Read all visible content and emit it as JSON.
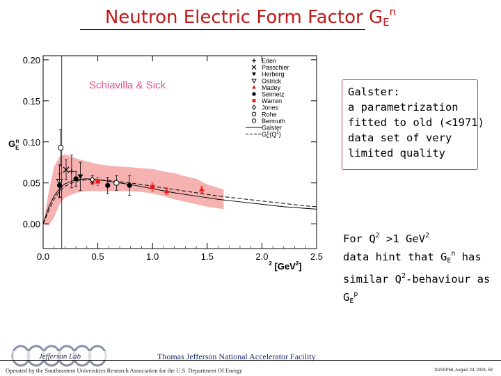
{
  "slide": {
    "title_main": "Neutron Electric Form Factor G",
    "title_sub": "E",
    "title_sup": "n",
    "note_box": [
      "Galster:",
      "a parametrization",
      "fitted to old (<1971)",
      "data set of very",
      "limited quality"
    ],
    "note2": {
      "l1_a": "For Q",
      "l1_s1": "2",
      "l1_b": " >1 GeV",
      "l1_s2": "2",
      "l2_a": "data hint that G",
      "l2_sub": "E",
      "l2_sup": "n",
      "l2_b": " has",
      "l3_a": "similar Q",
      "l3_sup": "2",
      "l3_b": "-behaviour as",
      "l4_a": "G",
      "l4_sub": "E",
      "l4_sup": "p"
    },
    "lab_name": "Thomas Jefferson National Accelerator Facility",
    "operated_by": "Operated by the Southeastern Universities Research Association for the U.S. Department Of Energy",
    "slide_id": "SUSSP58, August 23, 2004, 59",
    "logo_text": "Jefferson Lab"
  },
  "chart_data": {
    "type": "scatter",
    "annotation": "Schiavilla & Sick",
    "ylabel_main": "G",
    "ylabel_sub": "E",
    "ylabel_sup": "n",
    "xlabel_main": "Q",
    "xlabel_sup": "2",
    "xlabel_unit_a": "[GeV",
    "xlabel_unit_sup": "2",
    "xlabel_unit_b": "]",
    "xlim": [
      0.0,
      2.5
    ],
    "ylim": [
      -0.03,
      0.205
    ],
    "xticks": [
      0.0,
      0.5,
      1.0,
      1.5,
      2.0,
      2.5
    ],
    "xtick_labels": [
      "0.0",
      "0.5",
      "1.0",
      "1.5",
      "2.0",
      "2.5"
    ],
    "yticks": [
      0.0,
      0.05,
      0.1,
      0.15,
      0.2
    ],
    "ytick_labels": [
      "0.00",
      "0.05",
      "0.10",
      "0.15",
      "0.20"
    ],
    "vline_x": 0.17,
    "colors": {
      "band": "#f4a3a3",
      "red": "#e0201e",
      "annotation": "#e0508a",
      "frame": "#000000"
    },
    "band": {
      "x": [
        0.0,
        0.05,
        0.1,
        0.15,
        0.2,
        0.3,
        0.4,
        0.5,
        0.6,
        0.7,
        0.8,
        0.9,
        1.0,
        1.1,
        1.2,
        1.3,
        1.4,
        1.5,
        1.65
      ],
      "upper": [
        0.0,
        0.038,
        0.07,
        0.082,
        0.085,
        0.08,
        0.076,
        0.073,
        0.071,
        0.07,
        0.069,
        0.068,
        0.067,
        0.064,
        0.062,
        0.058,
        0.055,
        0.048,
        0.042
      ],
      "lower": [
        0.0,
        -0.002,
        0.008,
        0.024,
        0.032,
        0.038,
        0.04,
        0.04,
        0.04,
        0.04,
        0.04,
        0.039,
        0.037,
        0.034,
        0.03,
        0.027,
        0.024,
        0.021,
        0.018
      ]
    },
    "series": [
      {
        "name": "Eden",
        "marker": "plus",
        "color": "#000000",
        "points": [
          [
            0.26,
            0.064,
            0.02
          ]
        ]
      },
      {
        "name": "Passchier",
        "marker": "x",
        "color": "#000000",
        "points": [
          [
            0.21,
            0.066,
            0.012
          ]
        ]
      },
      {
        "name": "Herberg",
        "marker": "tri_down",
        "color": "#000000",
        "points": [
          [
            0.34,
            0.058,
            0.017
          ]
        ]
      },
      {
        "name": "Ostrick",
        "marker": "tri_down_open",
        "color": "#000000",
        "points": [
          [
            0.15,
            0.052,
            0.02
          ]
        ]
      },
      {
        "name": "Madey",
        "marker": "tri_up",
        "color": "#e0201e",
        "points": [
          [
            0.45,
            0.052,
            0.004
          ],
          [
            1.13,
            0.04,
            0.004
          ],
          [
            1.45,
            0.042,
            0.004
          ]
        ]
      },
      {
        "name": "Seimetz",
        "marker": "circle",
        "color": "#000000",
        "points": [
          [
            0.15,
            0.047,
            0.014
          ],
          [
            0.3,
            0.055,
            0.009
          ],
          [
            0.59,
            0.047,
            0.01
          ],
          [
            0.79,
            0.047,
            0.012
          ]
        ]
      },
      {
        "name": "Warren",
        "marker": "square",
        "color": "#e0201e",
        "points": [
          [
            0.5,
            0.052,
            0.005
          ],
          [
            1.0,
            0.045,
            0.005
          ]
        ]
      },
      {
        "name": "Jones",
        "marker": "diamond_open",
        "color": "#000000",
        "points": [
          [
            0.45,
            0.054,
            0.005
          ]
        ]
      },
      {
        "name": "Rohe",
        "marker": "circle_open",
        "color": "#000000",
        "points": [
          [
            0.67,
            0.05,
            0.009
          ]
        ]
      },
      {
        "name": "Bermuth",
        "marker": "circle_open",
        "color": "#000000",
        "points": [
          [
            0.16,
            0.093,
            0.022
          ]
        ]
      },
      {
        "name": "Galster",
        "marker": "line_solid",
        "color": "#000000",
        "curve": {
          "x": [
            0.0,
            0.05,
            0.1,
            0.15,
            0.2,
            0.3,
            0.4,
            0.5,
            0.6,
            0.8,
            1.0,
            1.2,
            1.4,
            1.6,
            1.8,
            2.0,
            2.2,
            2.4,
            2.5
          ],
          "y": [
            0.0,
            0.02,
            0.034,
            0.043,
            0.049,
            0.054,
            0.055,
            0.054,
            0.052,
            0.048,
            0.043,
            0.038,
            0.034,
            0.03,
            0.027,
            0.024,
            0.021,
            0.019,
            0.018
          ]
        }
      },
      {
        "name": "G",
        "name_sub": "E",
        "name_sup": "n",
        "name_tail": "(Q",
        "name_tail_sup": "2",
        "name_end": ")",
        "marker": "line_dashed",
        "color": "#000000",
        "curve": {
          "x": [
            0.0,
            0.05,
            0.1,
            0.15,
            0.2,
            0.3,
            0.4,
            0.5,
            0.6,
            0.8,
            1.0,
            1.2,
            1.4,
            1.6,
            1.8,
            2.0,
            2.2,
            2.4,
            2.5
          ],
          "y": [
            0.0,
            0.016,
            0.03,
            0.04,
            0.046,
            0.052,
            0.054,
            0.054,
            0.053,
            0.05,
            0.046,
            0.042,
            0.038,
            0.034,
            0.031,
            0.028,
            0.025,
            0.022,
            0.021
          ]
        }
      }
    ]
  }
}
